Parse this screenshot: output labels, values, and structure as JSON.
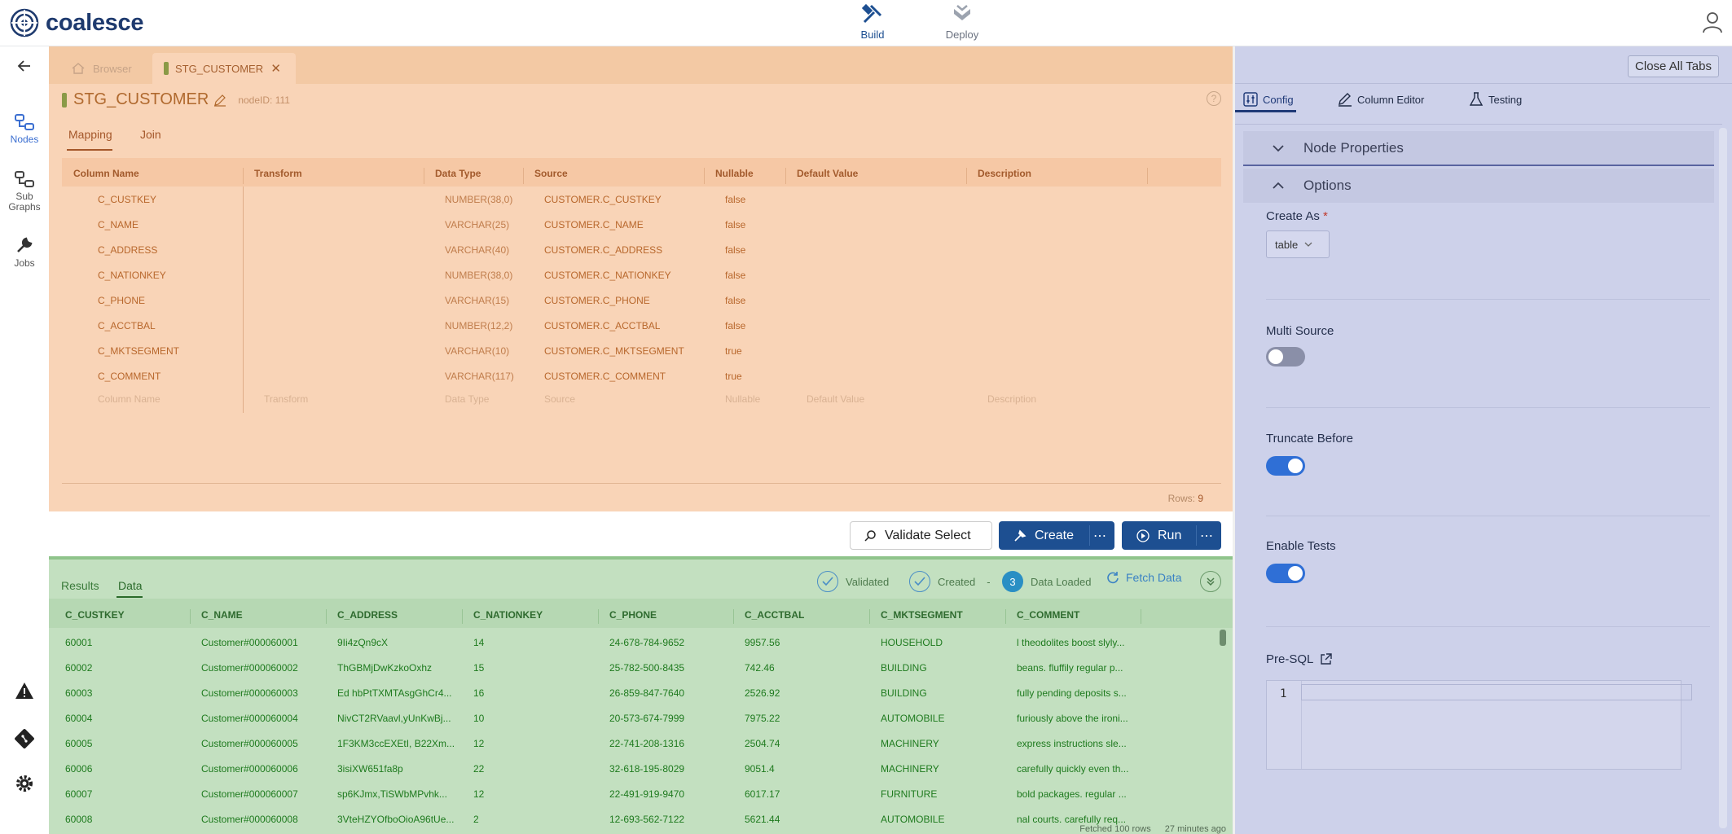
{
  "app": {
    "name": "coalesce"
  },
  "topnav": {
    "build": "Build",
    "deploy": "Deploy"
  },
  "sidebar": {
    "nodes": "Nodes",
    "subgraphs_1": "Sub",
    "subgraphs_2": "Graphs",
    "jobs": "Jobs"
  },
  "tabs": {
    "browser": "Browser",
    "node": "STG_CUSTOMER"
  },
  "node": {
    "name": "STG_CUSTOMER",
    "node_id": "nodeID: 111",
    "subtabs": [
      "Mapping",
      "Join"
    ]
  },
  "mapping": {
    "columns": [
      "Column Name",
      "Transform",
      "Data Type",
      "Source",
      "Nullable",
      "Default Value",
      "Description"
    ],
    "rows": [
      {
        "name": "C_CUSTKEY",
        "type": "NUMBER(38,0)",
        "source": "CUSTOMER.C_CUSTKEY",
        "nullable": "false"
      },
      {
        "name": "C_NAME",
        "type": "VARCHAR(25)",
        "source": "CUSTOMER.C_NAME",
        "nullable": "false"
      },
      {
        "name": "C_ADDRESS",
        "type": "VARCHAR(40)",
        "source": "CUSTOMER.C_ADDRESS",
        "nullable": "false"
      },
      {
        "name": "C_NATIONKEY",
        "type": "NUMBER(38,0)",
        "source": "CUSTOMER.C_NATIONKEY",
        "nullable": "false"
      },
      {
        "name": "C_PHONE",
        "type": "VARCHAR(15)",
        "source": "CUSTOMER.C_PHONE",
        "nullable": "false"
      },
      {
        "name": "C_ACCTBAL",
        "type": "NUMBER(12,2)",
        "source": "CUSTOMER.C_ACCTBAL",
        "nullable": "false"
      },
      {
        "name": "C_MKTSEGMENT",
        "type": "VARCHAR(10)",
        "source": "CUSTOMER.C_MKTSEGMENT",
        "nullable": "true"
      },
      {
        "name": "C_COMMENT",
        "type": "VARCHAR(117)",
        "source": "CUSTOMER.C_COMMENT",
        "nullable": "true"
      }
    ],
    "placeholder": {
      "name": "Column Name",
      "transform": "Transform",
      "type": "Data Type",
      "source": "Source",
      "nullable": "Nullable",
      "default": "Default Value",
      "description": "Description"
    },
    "rows_label": "Rows:",
    "rows_count": "9"
  },
  "actions": {
    "validate": "Validate Select",
    "create": "Create",
    "run": "Run"
  },
  "results": {
    "tabs": [
      "Results",
      "Data"
    ],
    "status": {
      "validated": "Validated",
      "created": "Created",
      "dash": "-",
      "loaded_num": "3",
      "loaded": "Data Loaded",
      "fetch": "Fetch Data"
    },
    "columns": [
      "C_CUSTKEY",
      "C_NAME",
      "C_ADDRESS",
      "C_NATIONKEY",
      "C_PHONE",
      "C_ACCTBAL",
      "C_MKTSEGMENT",
      "C_COMMENT"
    ],
    "rows": [
      [
        "60001",
        "Customer#000060001",
        "9Ii4zQn9cX",
        "14",
        "24-678-784-9652",
        "9957.56",
        "HOUSEHOLD",
        "l theodolites boost slyly..."
      ],
      [
        "60002",
        "Customer#000060002",
        "ThGBMjDwKzkoOxhz",
        "15",
        "25-782-500-8435",
        "742.46",
        "BUILDING",
        "beans. fluffily regular p..."
      ],
      [
        "60003",
        "Customer#000060003",
        "Ed hbPtTXMTAsgGhCr4...",
        "16",
        "26-859-847-7640",
        "2526.92",
        "BUILDING",
        "fully pending deposits s..."
      ],
      [
        "60004",
        "Customer#000060004",
        "NivCT2RVaavl,yUnKwBj...",
        "10",
        "20-573-674-7999",
        "7975.22",
        "AUTOMOBILE",
        "furiously above the ironi..."
      ],
      [
        "60005",
        "Customer#000060005",
        "1F3KM3ccEXEtI, B22Xm...",
        "12",
        "22-741-208-1316",
        "2504.74",
        "MACHINERY",
        "express instructions sle..."
      ],
      [
        "60006",
        "Customer#000060006",
        "3isiXW651fa8p",
        "22",
        "32-618-195-8029",
        "9051.4",
        "MACHINERY",
        "carefully quickly even th..."
      ],
      [
        "60007",
        "Customer#000060007",
        "sp6KJmx,TiSWbMPvhk...",
        "12",
        "22-491-919-9470",
        "6017.17",
        "FURNITURE",
        "bold packages. regular ..."
      ],
      [
        "60008",
        "Customer#000060008",
        "3VteHZYOfboOioA96tUe...",
        "2",
        "12-693-562-7122",
        "5621.44",
        "AUTOMOBILE",
        "nal courts. carefully req..."
      ]
    ],
    "footer": {
      "fetched": "Fetched 100 rows",
      "ago": "27 minutes ago"
    }
  },
  "rightpanel": {
    "close_all": "Close All Tabs",
    "tabs": {
      "config": "Config",
      "column_editor": "Column Editor",
      "testing": "Testing"
    },
    "sections": {
      "node_props": "Node Properties",
      "options": "Options"
    },
    "create_as": {
      "label": "Create As",
      "required": "*",
      "value": "table"
    },
    "multi_source": {
      "label": "Multi Source",
      "enabled": false
    },
    "truncate_before": {
      "label": "Truncate Before",
      "enabled": true
    },
    "enable_tests": {
      "label": "Enable Tests",
      "enabled": true
    },
    "pre_sql": {
      "label": "Pre-SQL",
      "line": "1"
    }
  },
  "colors": {
    "orange_bg": "#f9d4b7",
    "green_bg": "#c3e0c0",
    "panel_bg": "#cdd1ea",
    "primary": "#1d4f91",
    "toggle_on": "#2f6fd6"
  }
}
